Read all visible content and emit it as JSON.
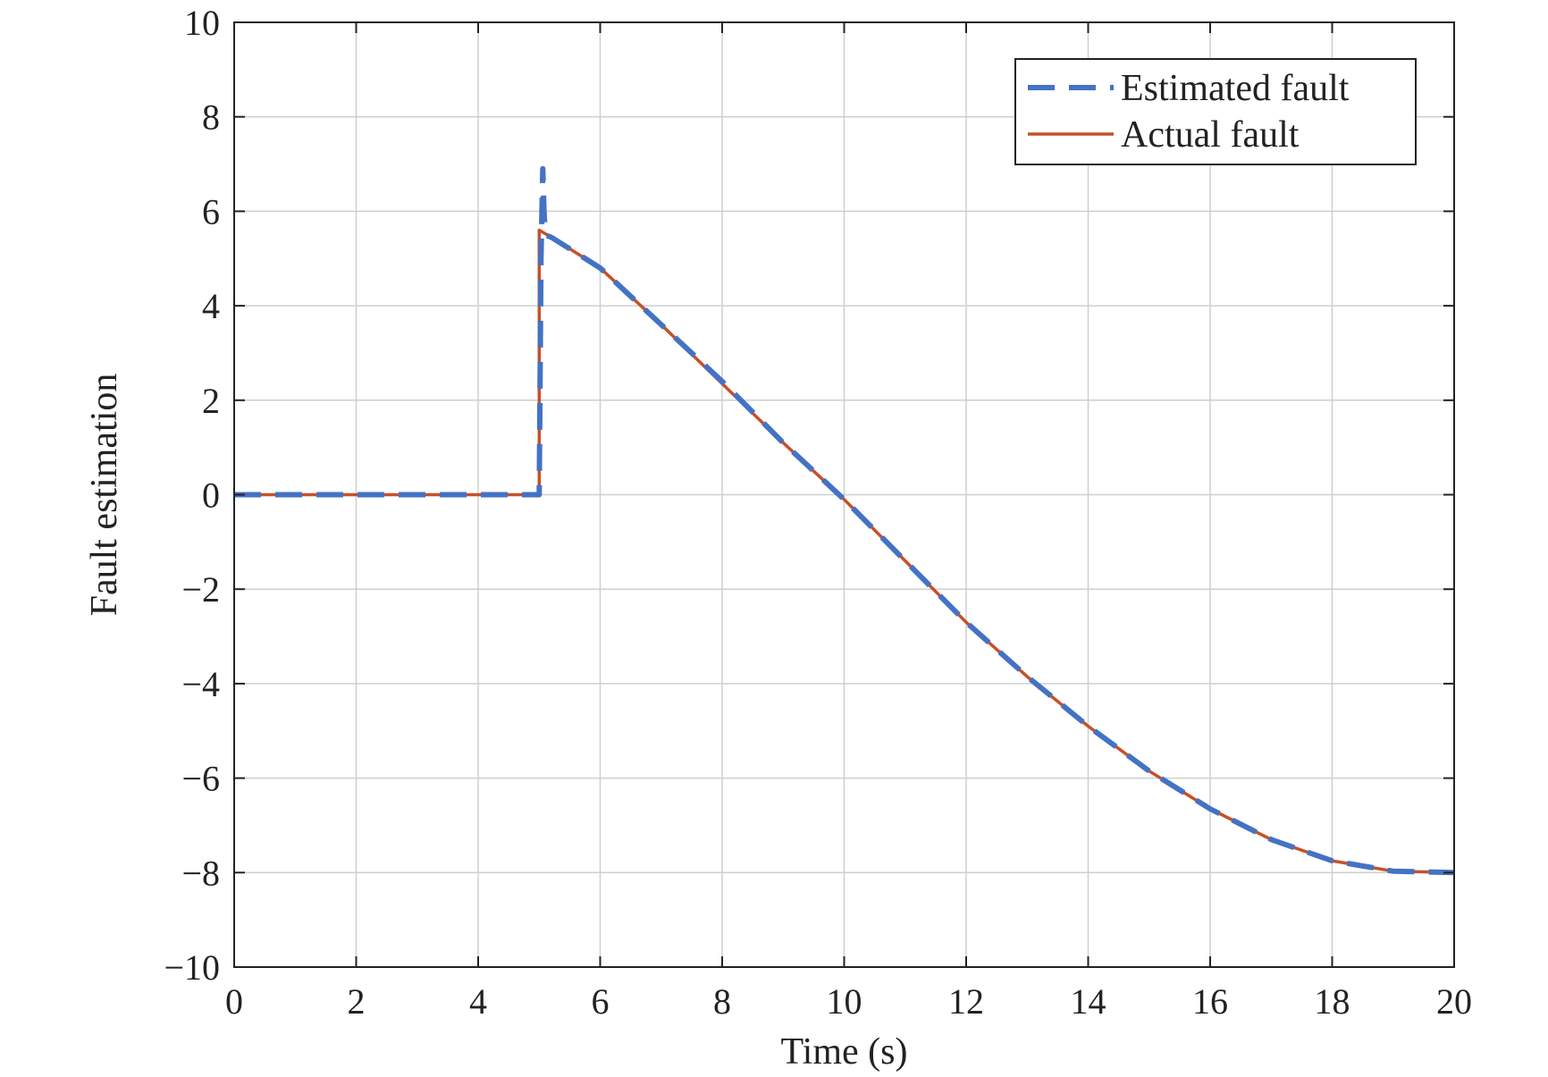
{
  "chart_data": {
    "type": "line",
    "title": "",
    "xlabel": "Time (s)",
    "ylabel": "Fault estimation",
    "xlim": [
      0,
      20
    ],
    "ylim": [
      -10,
      10
    ],
    "x_ticks": [
      0,
      2,
      4,
      6,
      8,
      10,
      12,
      14,
      16,
      18,
      20
    ],
    "x_tick_labels": [
      "0",
      "2",
      "4",
      "6",
      "8",
      "10",
      "12",
      "14",
      "16",
      "18",
      "20"
    ],
    "y_ticks": [
      10,
      8,
      6,
      4,
      2,
      0,
      -2,
      -4,
      -6,
      -8,
      -10
    ],
    "y_tick_labels": [
      "10",
      "8",
      "6",
      "4",
      "2",
      "0",
      "−2",
      "−4",
      "−6",
      "−8",
      "−10"
    ],
    "grid": true,
    "legend_position": "top-right",
    "series": [
      {
        "name": "Estimated fault",
        "color": "#4472C4",
        "style": "dashed",
        "x": [
          0,
          4.95,
          5.0,
          5.03,
          5.06,
          5.08,
          5.1,
          5.2,
          6,
          7,
          8,
          9,
          10,
          11,
          12,
          13,
          14,
          15,
          16,
          17,
          18,
          19,
          20
        ],
        "y": [
          0,
          0,
          0,
          5.0,
          6.9,
          6.0,
          5.5,
          5.45,
          4.8,
          3.6,
          2.4,
          1.1,
          -0.1,
          -1.4,
          -2.7,
          -3.85,
          -4.9,
          -5.85,
          -6.65,
          -7.3,
          -7.75,
          -7.97,
          -8.0
        ]
      },
      {
        "name": "Actual fault",
        "color": "#C5502A",
        "style": "solid",
        "x": [
          0,
          4.98,
          5.0,
          5.0,
          5.2,
          6,
          7,
          8,
          9,
          10,
          11,
          12,
          13,
          14,
          15,
          16,
          17,
          18,
          19,
          20
        ],
        "y": [
          0,
          0,
          0,
          5.6,
          5.45,
          4.8,
          3.6,
          2.35,
          1.1,
          -0.1,
          -1.4,
          -2.7,
          -3.85,
          -4.9,
          -5.85,
          -6.65,
          -7.3,
          -7.75,
          -7.97,
          -8.0
        ]
      }
    ]
  }
}
